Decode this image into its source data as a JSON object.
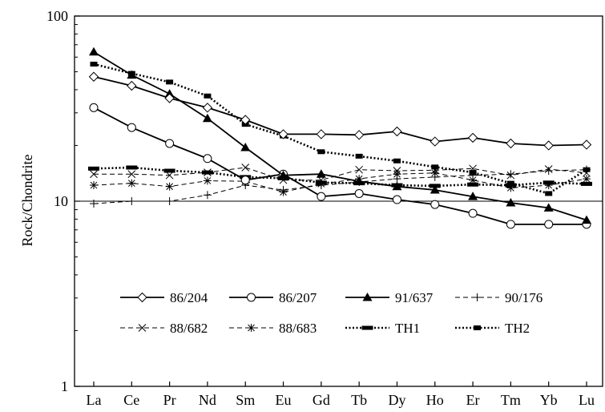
{
  "chart_data": {
    "type": "line",
    "title": "",
    "xlabel": "",
    "ylabel": "Rock/Chondrite",
    "yscale": "log",
    "ylim": [
      1,
      100
    ],
    "yticks": [
      "1",
      "10",
      "100"
    ],
    "reference_line": 10,
    "grid": false,
    "legend_position": "lower-center-inside",
    "categories": [
      "La",
      "Ce",
      "Pr",
      "Nd",
      "Sm",
      "Eu",
      "Gd",
      "Tb",
      "Dy",
      "Ho",
      "Er",
      "Tm",
      "Yb",
      "Lu"
    ],
    "series": [
      {
        "name": "86/204",
        "style": "solid",
        "marker": "diamond-open",
        "values": [
          47,
          42,
          36,
          32,
          27.5,
          23,
          23,
          22.8,
          23.8,
          21,
          22,
          20.5,
          20,
          20.2
        ]
      },
      {
        "name": "86/207",
        "style": "solid",
        "marker": "circle-open",
        "values": [
          32,
          25,
          20.5,
          17,
          13,
          14,
          10.6,
          11,
          10.2,
          9.6,
          8.6,
          7.5,
          7.5,
          7.5
        ]
      },
      {
        "name": "91/637",
        "style": "solid",
        "marker": "triangle-filled",
        "values": [
          64,
          48,
          38,
          28,
          19.5,
          13.8,
          14,
          12.8,
          12,
          11.5,
          10.6,
          9.8,
          9.2,
          7.9
        ]
      },
      {
        "name": "90/176",
        "style": "dashed",
        "marker": "plus",
        "values": [
          9.7,
          10,
          10,
          10.8,
          12.2,
          11.5,
          12.2,
          12.7,
          13.2,
          13.5,
          13.8,
          14,
          14.6,
          14.8
        ]
      },
      {
        "name": "88/682",
        "style": "dashed",
        "marker": "x",
        "values": [
          14,
          14,
          13.8,
          14.3,
          15.2,
          13,
          13,
          14.8,
          14.6,
          14.7,
          15,
          13.8,
          14.9,
          14.2
        ]
      },
      {
        "name": "88/683",
        "style": "dashed",
        "marker": "asterisk",
        "values": [
          12.2,
          12.5,
          12,
          12.9,
          12.8,
          11.2,
          12.4,
          13.2,
          14,
          14.2,
          13,
          11.8,
          12.2,
          13.2
        ]
      },
      {
        "name": "TH1",
        "style": "dotted",
        "marker": "dash",
        "values": [
          15,
          15.2,
          14.6,
          14.3,
          13.5,
          13.3,
          12.6,
          12.5,
          12.2,
          12.1,
          12.3,
          12.2,
          12.6,
          12.4
        ]
      },
      {
        "name": "TH2",
        "style": "dotted",
        "marker": "square-small",
        "values": [
          55,
          49,
          44,
          37,
          26,
          22.5,
          18.5,
          17.5,
          16.5,
          15.3,
          14.3,
          12.5,
          11,
          14.8
        ]
      }
    ]
  }
}
